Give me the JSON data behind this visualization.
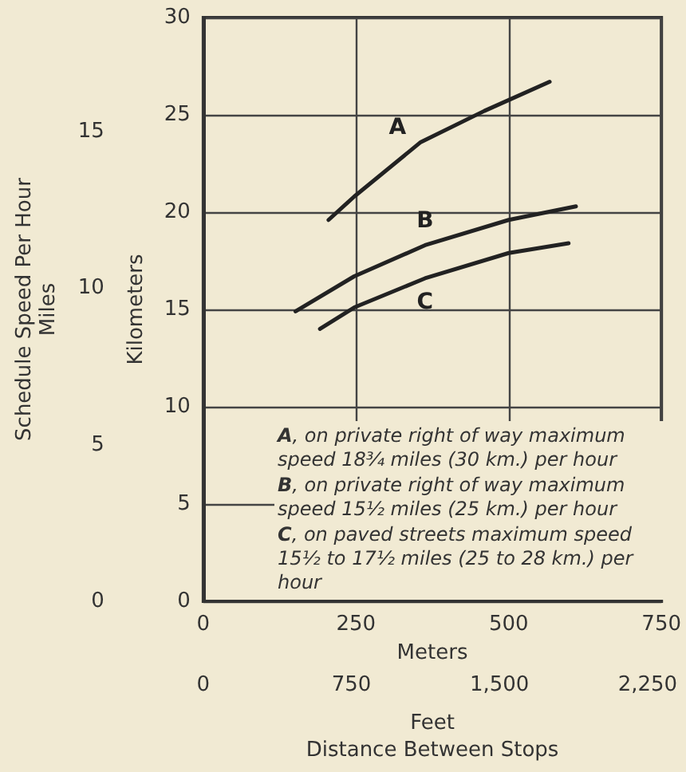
{
  "chart_data": {
    "type": "line",
    "xlabel": "Meters",
    "ylabel": "Kilometers",
    "y2label": "Schedule Speed Per Hour\nMiles",
    "x2label": "Feet\nDistance Between Stops",
    "xlim": [
      0,
      750
    ],
    "xticks": [
      0,
      250,
      500,
      750
    ],
    "x2lim": [
      0,
      2320
    ],
    "x2ticks": [
      0,
      750,
      {
        "value": 1500,
        "label": "1,500"
      },
      {
        "value": 2250,
        "label": "2,250"
      }
    ],
    "ylim": [
      0,
      30
    ],
    "yticks": [
      0,
      5,
      10,
      15,
      20,
      25,
      30
    ],
    "y2lim": [
      0,
      18.64
    ],
    "y2ticks": [
      0,
      5,
      10,
      15
    ],
    "grid": true,
    "legend": false,
    "marker": "none",
    "line_style": "solid",
    "series": [
      {
        "name": "A",
        "color": "#222222",
        "x": [
          205,
          247,
          356,
          460,
          567
        ],
        "values": [
          19.6,
          20.8,
          23.6,
          25.2,
          26.7
        ]
      },
      {
        "name": "B",
        "color": "#222222",
        "x": [
          151,
          247,
          363,
          500,
          610
        ],
        "values": [
          14.9,
          16.7,
          18.3,
          19.6,
          20.3
        ]
      },
      {
        "name": "C",
        "color": "#222222",
        "x": [
          191,
          247,
          363,
          500,
          598
        ],
        "values": [
          14.0,
          15.1,
          16.6,
          17.9,
          18.4
        ]
      }
    ],
    "annotations": [
      "A, on private right of way maximum speed 18¾ miles (30 km.) per hour",
      "B, on private right of way maximum speed 15½ miles (25 km.) per hour",
      "C, on paved streets maximum speed 15½ to 17½ miles (25 to 28 km.) per hour"
    ]
  }
}
